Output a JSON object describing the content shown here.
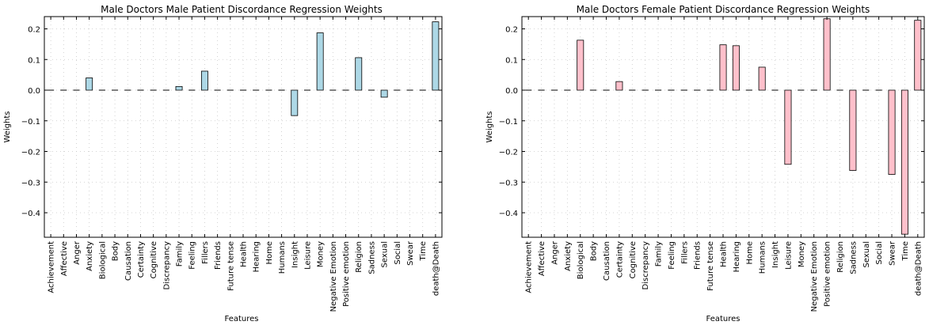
{
  "chart_data": [
    {
      "type": "bar",
      "title": "Male Doctors Male Patient Discordance Regression Weights",
      "xlabel": "Features",
      "ylabel": "Weights",
      "ylim": [
        -0.48,
        0.24
      ],
      "yticks": [
        0.2,
        0.1,
        0.0,
        -0.1,
        -0.2,
        -0.3,
        -0.4
      ],
      "ytick_labels": [
        "0.2",
        "0.1",
        "0.0",
        "−0.1",
        "−0.2",
        "−0.3",
        "−0.4"
      ],
      "grid": true,
      "bar_color": "#add8e6",
      "categories": [
        "Achievement",
        "Affective",
        "Anger",
        "Anxiety",
        "Biological",
        "Body",
        "Causation",
        "Certainty",
        "Cognitive",
        "Discrepancy",
        "Family",
        "Feeling",
        "Fillers",
        "Friends",
        "Future tense",
        "Health",
        "Hearing",
        "Home",
        "Humans",
        "Insight",
        "Leisure",
        "Money",
        "Negative Emotion",
        "Positive emotion",
        "Religion",
        "Sadness",
        "Sexual",
        "Social",
        "Swear",
        "Time",
        "death@Death"
      ],
      "values": [
        0,
        0,
        0,
        0.04,
        0,
        0,
        0,
        0,
        0,
        0,
        0.012,
        0,
        0.062,
        0,
        0,
        0,
        0,
        0,
        0,
        -0.083,
        0,
        0.187,
        0,
        0,
        0.106,
        0,
        -0.023,
        0,
        0,
        0,
        0.223
      ]
    },
    {
      "type": "bar",
      "title": "Male Doctors Female Patient Discordance Regression Weights",
      "xlabel": "Features",
      "ylabel": "Weights",
      "ylim": [
        -0.48,
        0.24
      ],
      "yticks": [
        0.2,
        0.1,
        0.0,
        -0.1,
        -0.2,
        -0.3,
        -0.4
      ],
      "ytick_labels": [
        "0.2",
        "0.1",
        "0.0",
        "−0.1",
        "−0.2",
        "−0.3",
        "−0.4"
      ],
      "grid": true,
      "bar_color": "#ffc0cb",
      "categories": [
        "Achievement",
        "Affective",
        "Anger",
        "Anxiety",
        "Biological",
        "Body",
        "Causation",
        "Certainty",
        "Cognitive",
        "Discrepancy",
        "Family",
        "Feeling",
        "Fillers",
        "Friends",
        "Future tense",
        "Health",
        "Hearing",
        "Home",
        "Humans",
        "Insight",
        "Leisure",
        "Money",
        "Negative Emotion",
        "Positive emotion",
        "Religion",
        "Sadness",
        "Sexual",
        "Social",
        "Swear",
        "Time",
        "death@Death"
      ],
      "values": [
        0,
        0,
        0,
        0,
        0.163,
        0,
        0,
        0.028,
        0,
        0,
        0,
        0,
        0,
        0,
        0,
        0.148,
        0.145,
        0,
        0.075,
        0,
        -0.242,
        0,
        0,
        0.233,
        0,
        -0.262,
        0,
        0,
        -0.275,
        -0.47,
        0.228
      ]
    }
  ]
}
